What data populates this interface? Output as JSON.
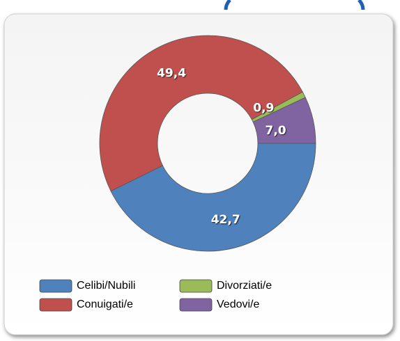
{
  "chart_data": {
    "type": "donut",
    "categories": [
      "Celibi/Nubili",
      "Conuigati/e",
      "Divorziati/e",
      "Vedovi/e"
    ],
    "values": [
      42.7,
      49.4,
      0.9,
      7.0
    ],
    "value_labels": [
      "42,7",
      "49,4",
      "0,9",
      "7,0"
    ],
    "colors": [
      "#4f81bd",
      "#c0504d",
      "#9bbb59",
      "#8064a2"
    ],
    "legend": "bottom"
  }
}
